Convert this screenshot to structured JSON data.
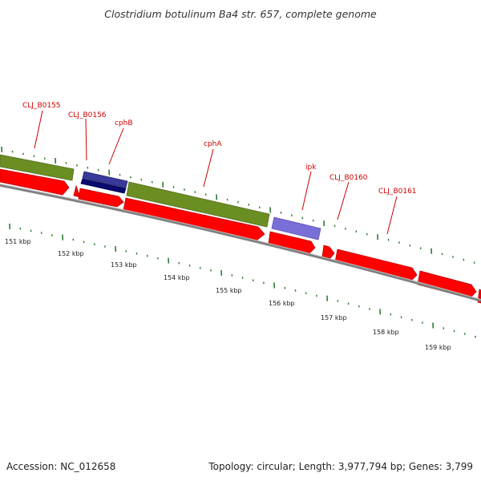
{
  "title": "Clostridium botulinum Ba4 str. 657, complete genome",
  "footer": {
    "accession": "Accession: NC_012658",
    "summary": "Topology: circular; Length: 3,977,794 bp; Genes: 3,799"
  },
  "colors": {
    "forward_cds": "#6b8e23",
    "forward_dark": "#1a1a7a",
    "forward_light": "#7a6fd6",
    "reverse_cds": "#ff0000",
    "backbone": "#808080",
    "tick": "#2e7d32",
    "label": "#cc0000"
  },
  "gene_labels": [
    {
      "label": "CLJ_B0155"
    },
    {
      "label": "CLJ_B0156"
    },
    {
      "label": "cphB"
    },
    {
      "label": "cphA"
    },
    {
      "label": "ipk"
    },
    {
      "label": "CLJ_B0160"
    },
    {
      "label": "CLJ_B0161"
    }
  ],
  "kbp_labels": [
    "151 kbp",
    "152 kbp",
    "153 kbp",
    "154 kbp",
    "155 kbp",
    "156 kbp",
    "157 kbp",
    "158 kbp",
    "159 kbp"
  ]
}
